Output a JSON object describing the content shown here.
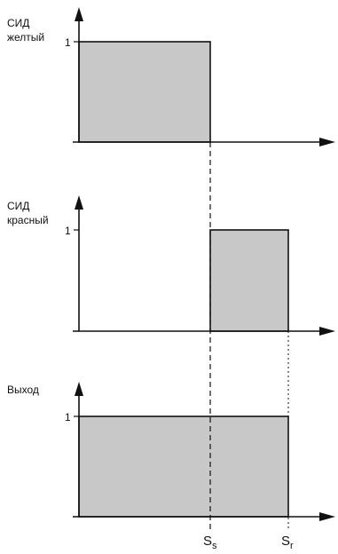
{
  "chart_data": {
    "type": "timing-diagram",
    "x_thresholds": {
      "s_s": {
        "base": "S",
        "sub": "s"
      },
      "s_r": {
        "base": "S",
        "sub": "r"
      }
    },
    "panels": [
      {
        "id": "yellow",
        "label_lines": [
          "СИД",
          "желтый"
        ],
        "y_tick": "1",
        "high_from": "start",
        "high_to": "s_s",
        "level": 1
      },
      {
        "id": "red",
        "label_lines": [
          "СИД",
          "красный"
        ],
        "y_tick": "1",
        "high_from": "s_s",
        "high_to": "s_r",
        "level": 1
      },
      {
        "id": "output",
        "label_lines": [
          "Выход"
        ],
        "y_tick": "1",
        "high_from": "start",
        "high_to": "s_r",
        "level": 1
      }
    ],
    "fill_color": "#c8c8c8",
    "line_color": "#111111"
  }
}
